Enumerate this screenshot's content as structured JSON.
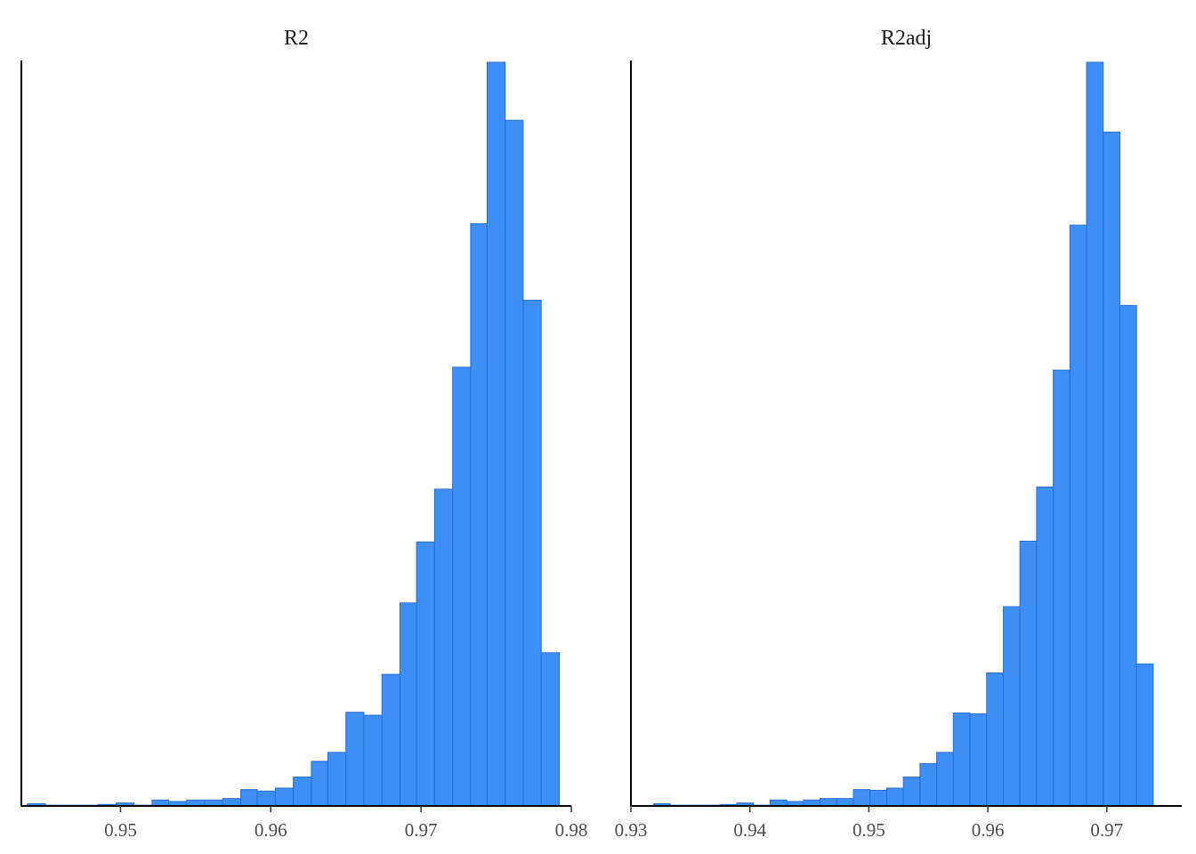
{
  "chart_data": [
    {
      "type": "bar",
      "title": "R2",
      "xlabel": "",
      "ylabel": "",
      "xlim": [
        0.9434,
        0.98
      ],
      "xticks": [
        "0.95",
        "0.96",
        "0.97",
        "0.98"
      ],
      "ylim": [
        0,
        100
      ],
      "grid": false,
      "legend": "none",
      "bin_width": 0.00118,
      "bins": [
        {
          "x0": 0.9438,
          "x1": 0.945,
          "count": 0.3
        },
        {
          "x0": 0.945,
          "x1": 0.9462,
          "count": 0.1
        },
        {
          "x0": 0.9462,
          "x1": 0.9474,
          "count": 0.1
        },
        {
          "x0": 0.9474,
          "x1": 0.9485,
          "count": 0.1
        },
        {
          "x0": 0.9485,
          "x1": 0.9497,
          "count": 0.2
        },
        {
          "x0": 0.9497,
          "x1": 0.9509,
          "count": 0.4
        },
        {
          "x0": 0.9509,
          "x1": 0.9521,
          "count": 0.1
        },
        {
          "x0": 0.9521,
          "x1": 0.9532,
          "count": 0.8
        },
        {
          "x0": 0.9532,
          "x1": 0.9544,
          "count": 0.6
        },
        {
          "x0": 0.9544,
          "x1": 0.9556,
          "count": 0.8
        },
        {
          "x0": 0.9556,
          "x1": 0.9568,
          "count": 0.8
        },
        {
          "x0": 0.9568,
          "x1": 0.958,
          "count": 1.0
        },
        {
          "x0": 0.958,
          "x1": 0.9591,
          "count": 2.2
        },
        {
          "x0": 0.9591,
          "x1": 0.9603,
          "count": 2.0
        },
        {
          "x0": 0.9603,
          "x1": 0.9615,
          "count": 2.4
        },
        {
          "x0": 0.9615,
          "x1": 0.9627,
          "count": 3.9
        },
        {
          "x0": 0.9627,
          "x1": 0.9638,
          "count": 6.0
        },
        {
          "x0": 0.9638,
          "x1": 0.965,
          "count": 7.2
        },
        {
          "x0": 0.965,
          "x1": 0.9662,
          "count": 12.6
        },
        {
          "x0": 0.9662,
          "x1": 0.9674,
          "count": 12.2
        },
        {
          "x0": 0.9674,
          "x1": 0.9686,
          "count": 17.7
        },
        {
          "x0": 0.9686,
          "x1": 0.9697,
          "count": 27.3
        },
        {
          "x0": 0.9697,
          "x1": 0.9709,
          "count": 35.5
        },
        {
          "x0": 0.9709,
          "x1": 0.9721,
          "count": 42.6
        },
        {
          "x0": 0.9721,
          "x1": 0.9733,
          "count": 59.0
        },
        {
          "x0": 0.9733,
          "x1": 0.9744,
          "count": 78.3
        },
        {
          "x0": 0.9744,
          "x1": 0.9756,
          "count": 100.0
        },
        {
          "x0": 0.9756,
          "x1": 0.9768,
          "count": 92.2
        },
        {
          "x0": 0.9768,
          "x1": 0.978,
          "count": 68.0
        },
        {
          "x0": 0.978,
          "x1": 0.9792,
          "count": 20.6
        }
      ],
      "colors": {
        "fill": "#3d8ef5",
        "stroke": "#2a6fd6"
      }
    },
    {
      "type": "bar",
      "title": "R2adj",
      "xlabel": "",
      "ylabel": "",
      "xlim": [
        0.93,
        0.9763
      ],
      "xticks": [
        "0.93",
        "0.94",
        "0.95",
        "0.96",
        "0.97"
      ],
      "ylim": [
        0,
        100
      ],
      "grid": false,
      "legend": "none",
      "bin_width": 0.0014,
      "bins": [
        {
          "x0": 0.9319,
          "x1": 0.9333,
          "count": 0.3
        },
        {
          "x0": 0.9333,
          "x1": 0.9347,
          "count": 0.1
        },
        {
          "x0": 0.9347,
          "x1": 0.9361,
          "count": 0.1
        },
        {
          "x0": 0.9361,
          "x1": 0.9375,
          "count": 0.1
        },
        {
          "x0": 0.9375,
          "x1": 0.9389,
          "count": 0.2
        },
        {
          "x0": 0.9389,
          "x1": 0.9403,
          "count": 0.4
        },
        {
          "x0": 0.9403,
          "x1": 0.9417,
          "count": 0.1
        },
        {
          "x0": 0.9417,
          "x1": 0.9431,
          "count": 0.8
        },
        {
          "x0": 0.9431,
          "x1": 0.9445,
          "count": 0.6
        },
        {
          "x0": 0.9445,
          "x1": 0.9459,
          "count": 0.8
        },
        {
          "x0": 0.9459,
          "x1": 0.9473,
          "count": 1.0
        },
        {
          "x0": 0.9473,
          "x1": 0.9487,
          "count": 1.0
        },
        {
          "x0": 0.9487,
          "x1": 0.9501,
          "count": 2.2
        },
        {
          "x0": 0.9501,
          "x1": 0.9515,
          "count": 2.1
        },
        {
          "x0": 0.9515,
          "x1": 0.9529,
          "count": 2.4
        },
        {
          "x0": 0.9529,
          "x1": 0.9543,
          "count": 3.9
        },
        {
          "x0": 0.9543,
          "x1": 0.9557,
          "count": 5.7
        },
        {
          "x0": 0.9557,
          "x1": 0.9571,
          "count": 7.2
        },
        {
          "x0": 0.9571,
          "x1": 0.9585,
          "count": 12.5
        },
        {
          "x0": 0.9585,
          "x1": 0.9599,
          "count": 12.4
        },
        {
          "x0": 0.9599,
          "x1": 0.9613,
          "count": 17.9
        },
        {
          "x0": 0.9613,
          "x1": 0.9627,
          "count": 26.8
        },
        {
          "x0": 0.9627,
          "x1": 0.9641,
          "count": 35.6
        },
        {
          "x0": 0.9641,
          "x1": 0.9655,
          "count": 42.9
        },
        {
          "x0": 0.9655,
          "x1": 0.9669,
          "count": 58.6
        },
        {
          "x0": 0.9669,
          "x1": 0.9683,
          "count": 78.1
        },
        {
          "x0": 0.9683,
          "x1": 0.9697,
          "count": 100.0
        },
        {
          "x0": 0.9697,
          "x1": 0.9711,
          "count": 90.6
        },
        {
          "x0": 0.9711,
          "x1": 0.9725,
          "count": 67.3
        },
        {
          "x0": 0.9725,
          "x1": 0.9739,
          "count": 19.1
        }
      ],
      "colors": {
        "fill": "#3d8ef5",
        "stroke": "#2a6fd6"
      }
    }
  ]
}
